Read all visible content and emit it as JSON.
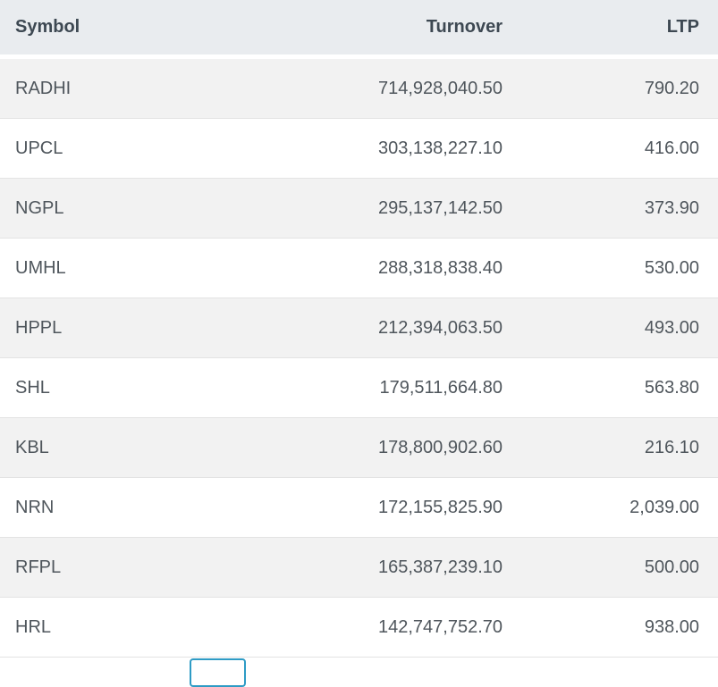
{
  "table": {
    "columns": {
      "symbol": "Symbol",
      "turnover": "Turnover",
      "ltp": "LTP"
    },
    "rows": [
      {
        "symbol": "RADHI",
        "turnover": "714,928,040.50",
        "ltp": "790.20"
      },
      {
        "symbol": "UPCL",
        "turnover": "303,138,227.10",
        "ltp": "416.00"
      },
      {
        "symbol": "NGPL",
        "turnover": "295,137,142.50",
        "ltp": "373.90"
      },
      {
        "symbol": "UMHL",
        "turnover": "288,318,838.40",
        "ltp": "530.00"
      },
      {
        "symbol": "HPPL",
        "turnover": "212,394,063.50",
        "ltp": "493.00"
      },
      {
        "symbol": "SHL",
        "turnover": "179,511,664.80",
        "ltp": "563.80"
      },
      {
        "symbol": "KBL",
        "turnover": "178,800,902.60",
        "ltp": "216.10"
      },
      {
        "symbol": "NRN",
        "turnover": "172,155,825.90",
        "ltp": "2,039.00"
      },
      {
        "symbol": "RFPL",
        "turnover": "165,387,239.10",
        "ltp": "500.00"
      },
      {
        "symbol": "HRL",
        "turnover": "142,747,752.70",
        "ltp": "938.00"
      }
    ]
  },
  "colors": {
    "header_bg": "#e9ecef",
    "header_text": "#3d4852",
    "row_stripe_bg": "#f2f2f2",
    "row_bg": "#ffffff",
    "cell_text": "#4f565c",
    "row_border": "#e3e3e3",
    "accent_blue": "#2e9bc5"
  }
}
